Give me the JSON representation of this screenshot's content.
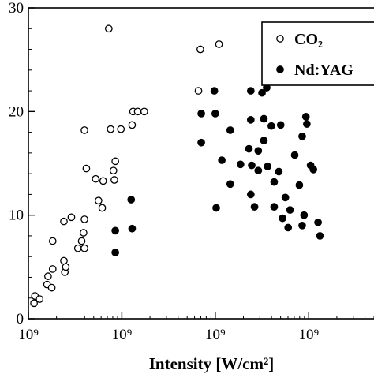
{
  "chart_data": {
    "type": "scatter",
    "title": "",
    "xlabel": "Intensity [W/cm²]",
    "ylabel": "",
    "x_tick_labels": [
      "10⁹",
      "10⁹",
      "10⁹",
      "10⁹"
    ],
    "x_tick_values": [
      0,
      1,
      2,
      3
    ],
    "xlim": [
      0,
      3.8
    ],
    "ylim": [
      0,
      30
    ],
    "y_ticks": [
      0,
      10,
      20,
      30
    ],
    "grid": false,
    "legend_placement": "top-right",
    "series": [
      {
        "name": "CO₂",
        "marker": "open-circle",
        "color": "#000000",
        "points": [
          [
            0.06,
            1.5
          ],
          [
            0.07,
            2.2
          ],
          [
            0.12,
            1.9
          ],
          [
            0.2,
            3.3
          ],
          [
            0.21,
            4.1
          ],
          [
            0.25,
            3.0
          ],
          [
            0.26,
            4.8
          ],
          [
            0.26,
            7.5
          ],
          [
            0.38,
            5.6
          ],
          [
            0.39,
            4.5
          ],
          [
            0.38,
            9.4
          ],
          [
            0.4,
            5.0
          ],
          [
            0.46,
            9.8
          ],
          [
            0.53,
            6.8
          ],
          [
            0.57,
            7.5
          ],
          [
            0.6,
            6.8
          ],
          [
            0.59,
            8.3
          ],
          [
            0.6,
            9.6
          ],
          [
            0.6,
            18.2
          ],
          [
            0.62,
            14.5
          ],
          [
            0.72,
            13.5
          ],
          [
            0.75,
            11.4
          ],
          [
            0.79,
            10.7
          ],
          [
            0.8,
            13.3
          ],
          [
            0.86,
            28.0
          ],
          [
            0.88,
            18.3
          ],
          [
            0.91,
            14.3
          ],
          [
            0.92,
            13.4
          ],
          [
            0.93,
            15.2
          ],
          [
            0.99,
            18.3
          ],
          [
            1.11,
            18.7
          ],
          [
            1.12,
            20.0
          ],
          [
            1.17,
            20.0
          ],
          [
            1.24,
            20.0
          ],
          [
            1.82,
            22.0
          ],
          [
            1.84,
            26.0
          ],
          [
            2.04,
            26.5
          ]
        ]
      },
      {
        "name": "Nd:YAG",
        "marker": "filled-circle",
        "color": "#000000",
        "points": [
          [
            0.93,
            8.5
          ],
          [
            0.93,
            6.4
          ],
          [
            1.1,
            11.5
          ],
          [
            1.11,
            8.7
          ],
          [
            1.85,
            17.0
          ],
          [
            1.85,
            19.8
          ],
          [
            1.99,
            22.0
          ],
          [
            2.0,
            19.8
          ],
          [
            2.01,
            10.7
          ],
          [
            2.07,
            15.3
          ],
          [
            2.16,
            13.0
          ],
          [
            2.16,
            18.2
          ],
          [
            2.27,
            14.9
          ],
          [
            2.36,
            16.4
          ],
          [
            2.38,
            22.0
          ],
          [
            2.38,
            19.2
          ],
          [
            2.38,
            12.0
          ],
          [
            2.39,
            14.8
          ],
          [
            2.42,
            10.8
          ],
          [
            2.46,
            14.3
          ],
          [
            2.46,
            16.2
          ],
          [
            2.5,
            21.8
          ],
          [
            2.52,
            17.2
          ],
          [
            2.52,
            19.3
          ],
          [
            2.55,
            22.3
          ],
          [
            2.56,
            14.7
          ],
          [
            2.58,
            23.5
          ],
          [
            2.6,
            18.6
          ],
          [
            2.63,
            13.2
          ],
          [
            2.63,
            10.8
          ],
          [
            2.66,
            24.0
          ],
          [
            2.68,
            14.2
          ],
          [
            2.7,
            18.7
          ],
          [
            2.72,
            9.7
          ],
          [
            2.75,
            11.7
          ],
          [
            2.78,
            8.8
          ],
          [
            2.8,
            10.5
          ],
          [
            2.85,
            15.8
          ],
          [
            2.9,
            12.9
          ],
          [
            2.93,
            17.6
          ],
          [
            2.93,
            9.0
          ],
          [
            2.95,
            10.0
          ],
          [
            2.97,
            19.5
          ],
          [
            2.98,
            18.8
          ],
          [
            3.02,
            14.8
          ],
          [
            3.05,
            14.4
          ],
          [
            3.1,
            9.3
          ],
          [
            3.12,
            8.0
          ]
        ]
      }
    ]
  }
}
